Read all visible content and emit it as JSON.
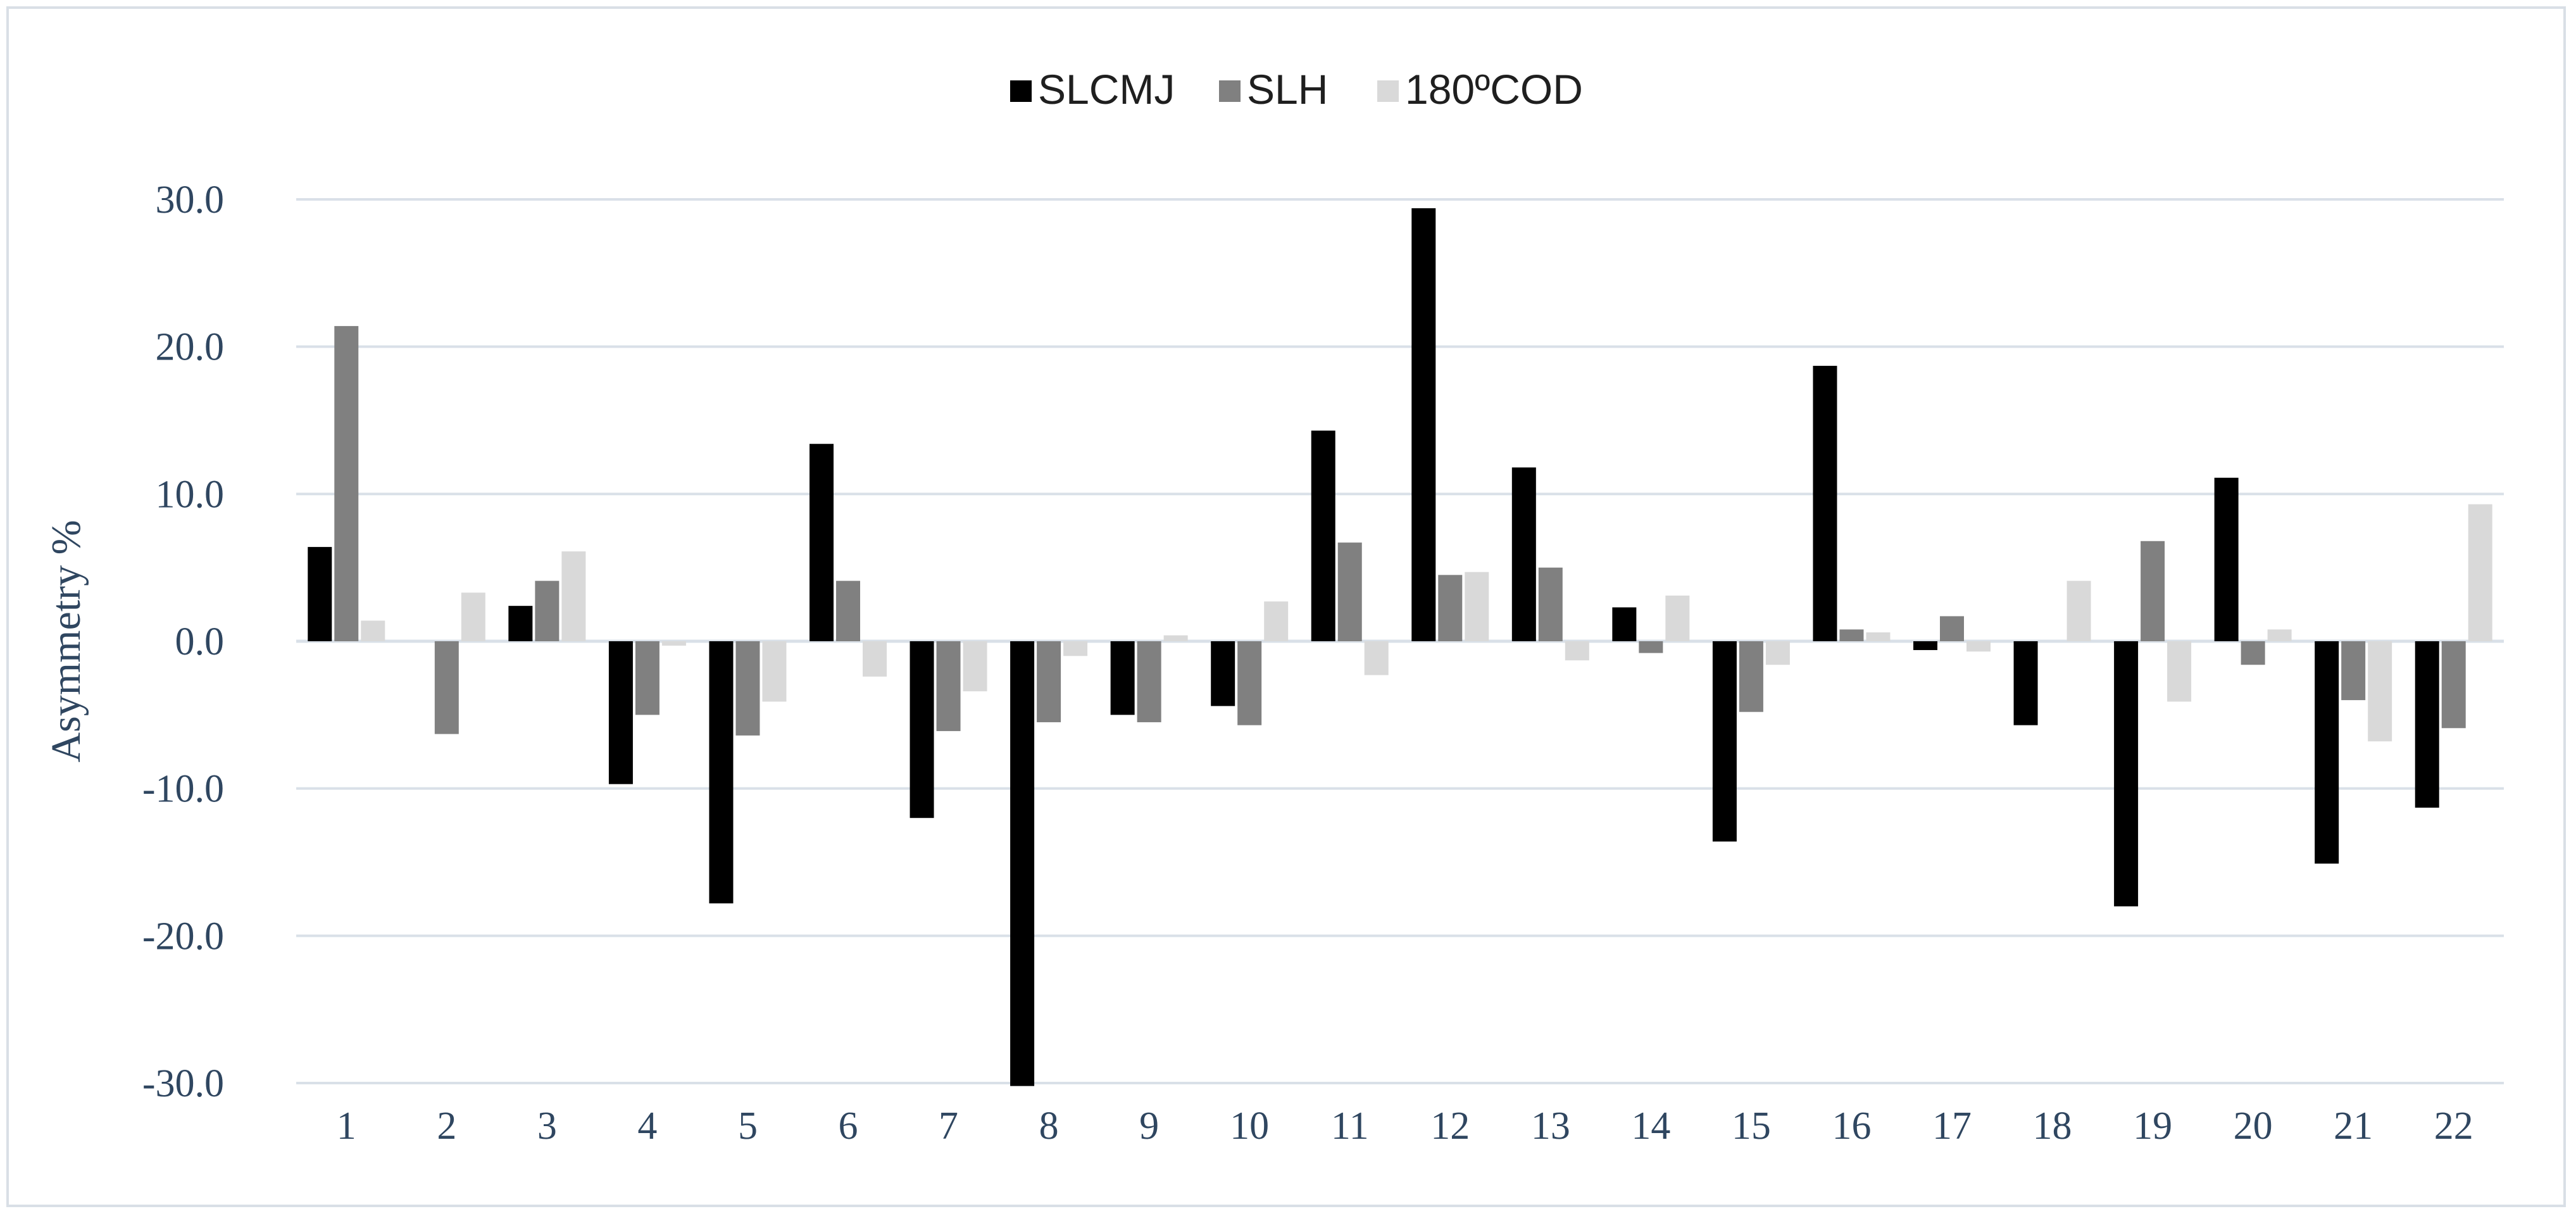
{
  "chart_data": {
    "type": "bar",
    "title": "",
    "xlabel": "",
    "ylabel": "Asymmetry %",
    "ylim": [
      -30,
      30
    ],
    "yticks": [
      30,
      20,
      10,
      0,
      -10,
      -20,
      -30
    ],
    "ytick_labels": [
      "30.0",
      "20.0",
      "10.0",
      "0.0",
      "-10.0",
      "-20.0",
      "-30.0"
    ],
    "grid": true,
    "legend_position": "top-center",
    "categories": [
      "1",
      "2",
      "3",
      "4",
      "5",
      "6",
      "7",
      "8",
      "9",
      "10",
      "11",
      "12",
      "13",
      "14",
      "15",
      "16",
      "17",
      "18",
      "19",
      "20",
      "21",
      "22"
    ],
    "series": [
      {
        "name": "SLCMJ",
        "color": "#000000",
        "values": [
          6.4,
          0,
          2.4,
          -9.7,
          -17.8,
          13.4,
          -12.0,
          -30.2,
          -5.0,
          -4.4,
          14.3,
          29.4,
          11.8,
          2.3,
          -13.6,
          18.7,
          -0.6,
          -5.7,
          -18.0,
          11.1,
          -15.1,
          -11.3
        ]
      },
      {
        "name": "SLH",
        "color": "#808080",
        "values": [
          21.4,
          -6.3,
          4.1,
          -5.0,
          -6.4,
          4.1,
          -6.1,
          -5.5,
          -5.5,
          -5.7,
          6.7,
          4.5,
          5.0,
          -0.8,
          -4.8,
          0.8,
          1.7,
          0,
          6.8,
          -1.6,
          -4.0,
          -5.9
        ]
      },
      {
        "name": "180ºCOD",
        "color": "#d9d9d9",
        "values": [
          1.4,
          3.3,
          6.1,
          -0.3,
          -4.1,
          -2.4,
          -3.4,
          -1.0,
          0.4,
          2.7,
          -2.3,
          4.7,
          -1.3,
          3.1,
          -1.6,
          0.6,
          -0.7,
          4.1,
          -4.1,
          0.8,
          -6.8,
          9.3
        ]
      }
    ]
  }
}
